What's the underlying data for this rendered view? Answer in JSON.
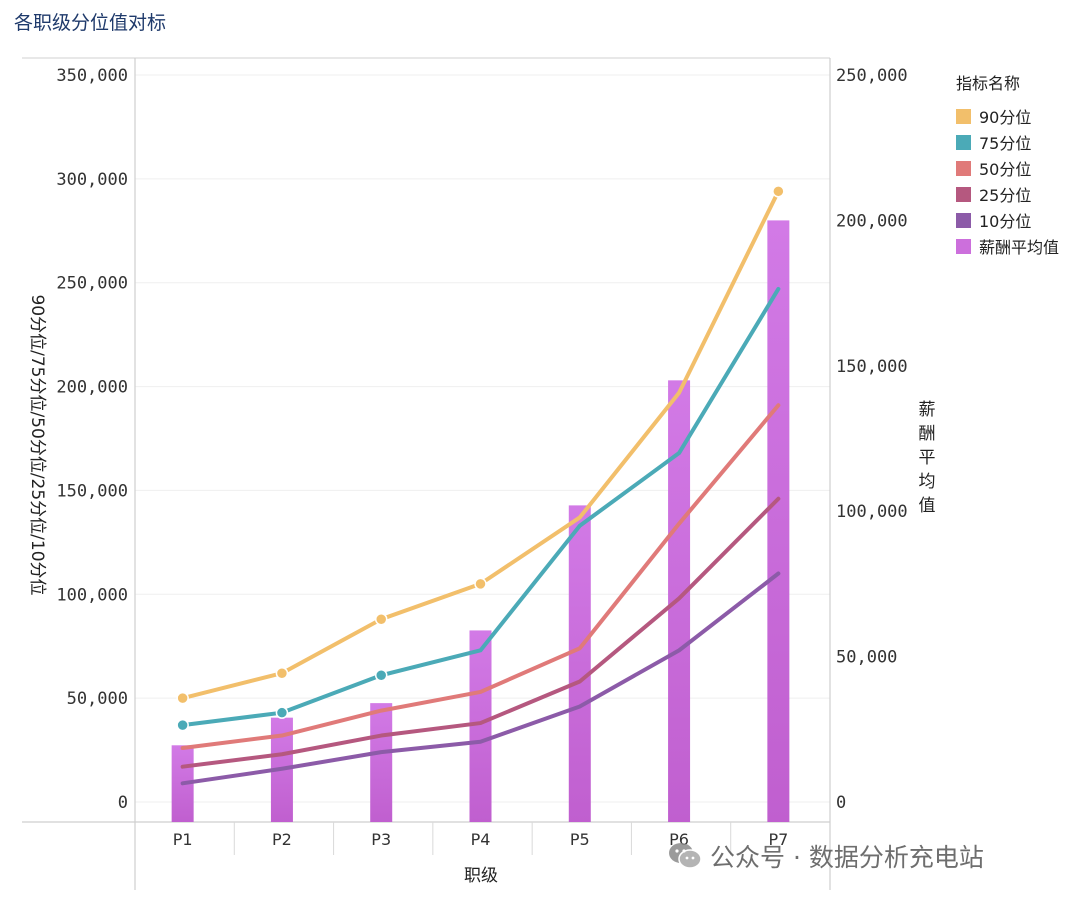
{
  "title": "各职级分位值对标",
  "watermark": "公众号 · 数据分析充电站",
  "chart_data": {
    "type": "bar+line",
    "title": "各职级分位值对标",
    "xlabel": "职级",
    "ylabel_left": "90分位/75分位/50分位/25分位/10分位",
    "ylabel_right": "薪酬平均值",
    "categories": [
      "P1",
      "P2",
      "P3",
      "P4",
      "P5",
      "P6",
      "P7"
    ],
    "ylim_left": [
      0,
      350000
    ],
    "ylim_right": [
      0,
      250000
    ],
    "left_ticks": [
      0,
      50000,
      100000,
      150000,
      200000,
      250000,
      300000,
      350000
    ],
    "left_tick_labels": [
      "0",
      "50,000",
      "100,000",
      "150,000",
      "200,000",
      "250,000",
      "300,000",
      "350,000"
    ],
    "right_ticks": [
      0,
      50000,
      100000,
      150000,
      200000,
      250000
    ],
    "right_tick_labels": [
      "0",
      "50,000",
      "100,000",
      "150,000",
      "200,000",
      "250,000"
    ],
    "lines": [
      {
        "name": "90分位",
        "color": "#f2bf6b",
        "values": [
          50000,
          62000,
          88000,
          105000,
          137000,
          197000,
          294000
        ]
      },
      {
        "name": "75分位",
        "color": "#4baab7",
        "values": [
          37000,
          43000,
          61000,
          73000,
          133000,
          168000,
          247000
        ]
      },
      {
        "name": "50分位",
        "color": "#e07a79",
        "values": [
          26000,
          32000,
          44000,
          53000,
          74000,
          134000,
          191000
        ]
      },
      {
        "name": "25分位",
        "color": "#b5587f",
        "values": [
          17000,
          23000,
          32000,
          38000,
          58000,
          98000,
          146000
        ]
      },
      {
        "name": "10分位",
        "color": "#8c5ba8",
        "values": [
          9000,
          16000,
          24000,
          29000,
          46000,
          73000,
          110000
        ]
      }
    ],
    "bars": {
      "name": "薪酬平均值",
      "color": "#cc6fdc",
      "values": [
        19500,
        29000,
        34000,
        59000,
        102000,
        145000,
        200000
      ]
    },
    "legend": {
      "title": "指标名称",
      "position": "right"
    },
    "grid": true
  }
}
